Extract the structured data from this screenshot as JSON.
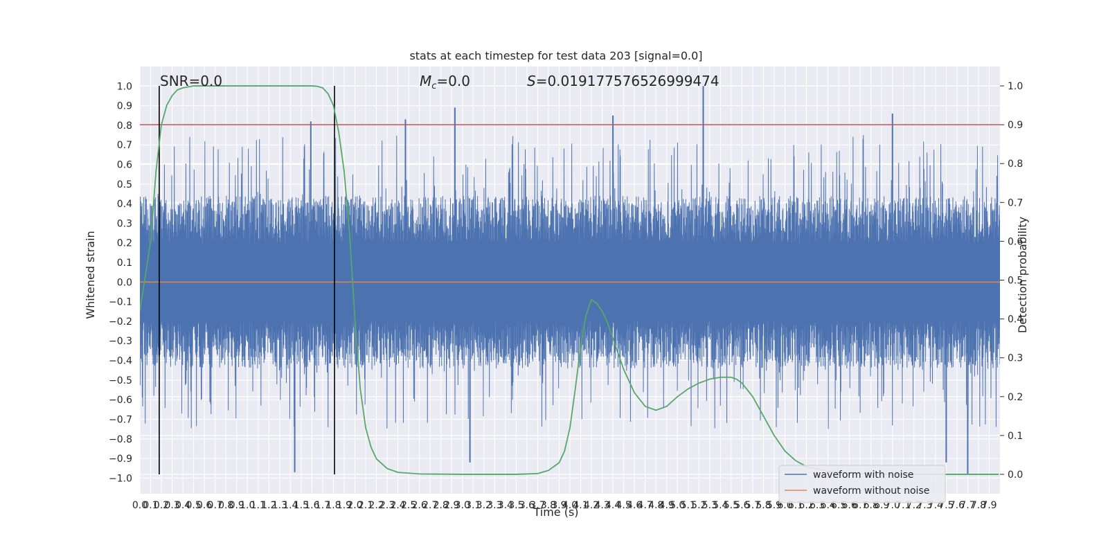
{
  "chart_data": {
    "type": "line",
    "title": "stats at each timestep for test data 203 [signal=0.0]",
    "xlabel": "Time (s)",
    "ylabel_left": "Whitened strain",
    "ylabel_right": "Detection probability",
    "xlim": [
      0.0,
      8.0
    ],
    "ylim_left": [
      -1.08,
      1.1
    ],
    "ylim_right": [
      -0.05,
      1.05
    ],
    "x_ticks": [
      "0.0",
      "0.1",
      "0.2",
      "0.3",
      "0.4",
      "0.5",
      "0.6",
      "0.7",
      "0.8",
      "0.9",
      "1.0",
      "1.1",
      "1.2",
      "1.3",
      "1.4",
      "1.5",
      "1.6",
      "1.7",
      "1.8",
      "1.9",
      "2.0",
      "2.1",
      "2.2",
      "2.3",
      "2.4",
      "2.5",
      "2.6",
      "2.7",
      "2.8",
      "2.9",
      "3.0",
      "3.1",
      "3.2",
      "3.3",
      "3.4",
      "3.5",
      "3.6",
      "3.7",
      "3.8",
      "3.9",
      "4.0",
      "4.1",
      "4.2",
      "4.3",
      "4.4",
      "4.5",
      "4.6",
      "4.7",
      "4.8",
      "4.9",
      "5.0",
      "5.1",
      "5.2",
      "5.3",
      "5.4",
      "5.5",
      "5.6",
      "5.7",
      "5.8",
      "5.9",
      "6.0",
      "6.1",
      "6.2",
      "6.3",
      "6.4",
      "6.5",
      "6.6",
      "6.7",
      "6.8",
      "6.9",
      "7.0",
      "7.1",
      "7.2",
      "7.3",
      "7.4",
      "7.5",
      "7.6",
      "7.7",
      "7.8",
      "7.9"
    ],
    "y_ticks_left": [
      "1.0",
      "0.9",
      "0.8",
      "0.7",
      "0.6",
      "0.5",
      "0.4",
      "0.3",
      "0.2",
      "0.1",
      "0.0",
      "−0.1",
      "−0.2",
      "−0.3",
      "−0.4",
      "−0.5",
      "−0.6",
      "−0.7",
      "−0.8",
      "−0.9",
      "−1.0"
    ],
    "y_ticks_right": [
      "1.0",
      "0.9",
      "0.8",
      "0.7",
      "0.6",
      "0.5",
      "0.4",
      "0.3",
      "0.2",
      "0.1",
      "0.0"
    ],
    "annotations": {
      "snr": "SNR=0.0",
      "mc_symbol": "M",
      "mc_sub": "c",
      "mc_value": "=0.0",
      "s_symbol": "S",
      "s_value": "=0.019177576526999474"
    },
    "vlines_x": [
      0.18,
      1.81
    ],
    "threshold_y_right": 0.9,
    "grid": true,
    "legend": {
      "placement": "lower-right",
      "entries": [
        "waveform with noise",
        "waveform without noise"
      ]
    },
    "series": [
      {
        "name": "waveform with noise",
        "axis": "left",
        "color": "#4c72b0",
        "kind": "noise",
        "amplitude_typical": 0.4,
        "amplitude_max": 1.0,
        "peaks": [
          {
            "x": 2.93,
            "y": 0.89
          },
          {
            "x": 5.24,
            "y": 1.0
          },
          {
            "x": 7.0,
            "y": 0.86
          },
          {
            "x": 4.4,
            "y": 0.85
          },
          {
            "x": 1.59,
            "y": 0.82
          },
          {
            "x": 2.47,
            "y": 0.83
          },
          {
            "x": 7.7,
            "y": -0.98
          },
          {
            "x": 1.44,
            "y": -0.97
          },
          {
            "x": 3.07,
            "y": -0.92
          },
          {
            "x": 7.5,
            "y": -0.92
          }
        ]
      },
      {
        "name": "waveform without noise",
        "axis": "left",
        "color": "#dd8452",
        "x": [
          0.0,
          8.0
        ],
        "y": [
          0.0,
          0.0
        ]
      },
      {
        "name": "detection probability",
        "axis": "right",
        "color": "#55a868",
        "x": [
          0.0,
          0.1,
          0.15,
          0.2,
          0.25,
          0.3,
          0.35,
          0.4,
          0.5,
          0.6,
          0.8,
          1.0,
          1.2,
          1.4,
          1.6,
          1.65,
          1.7,
          1.75,
          1.8,
          1.85,
          1.9,
          1.95,
          2.0,
          2.05,
          2.1,
          2.15,
          2.2,
          2.3,
          2.4,
          2.6,
          3.0,
          3.5,
          3.7,
          3.8,
          3.9,
          3.95,
          4.0,
          4.05,
          4.1,
          4.15,
          4.2,
          4.25,
          4.3,
          4.35,
          4.4,
          4.45,
          4.5,
          4.6,
          4.7,
          4.8,
          4.9,
          5.0,
          5.1,
          5.2,
          5.3,
          5.4,
          5.5,
          5.55,
          5.6,
          5.7,
          5.8,
          5.9,
          6.0,
          6.1,
          6.2,
          6.4,
          6.6,
          7.0,
          7.5,
          7.99
        ],
        "y": [
          0.42,
          0.6,
          0.78,
          0.9,
          0.95,
          0.975,
          0.99,
          0.995,
          1.0,
          1.0,
          1.0,
          1.0,
          1.0,
          1.0,
          1.0,
          0.999,
          0.995,
          0.98,
          0.95,
          0.88,
          0.78,
          0.62,
          0.4,
          0.22,
          0.12,
          0.07,
          0.04,
          0.015,
          0.005,
          0.001,
          0.0,
          0.0,
          0.002,
          0.01,
          0.03,
          0.06,
          0.12,
          0.22,
          0.33,
          0.41,
          0.45,
          0.44,
          0.42,
          0.39,
          0.35,
          0.31,
          0.27,
          0.21,
          0.175,
          0.165,
          0.175,
          0.2,
          0.22,
          0.235,
          0.245,
          0.25,
          0.25,
          0.245,
          0.235,
          0.2,
          0.15,
          0.1,
          0.06,
          0.035,
          0.02,
          0.008,
          0.003,
          0.0,
          0.0,
          0.0
        ]
      }
    ]
  }
}
